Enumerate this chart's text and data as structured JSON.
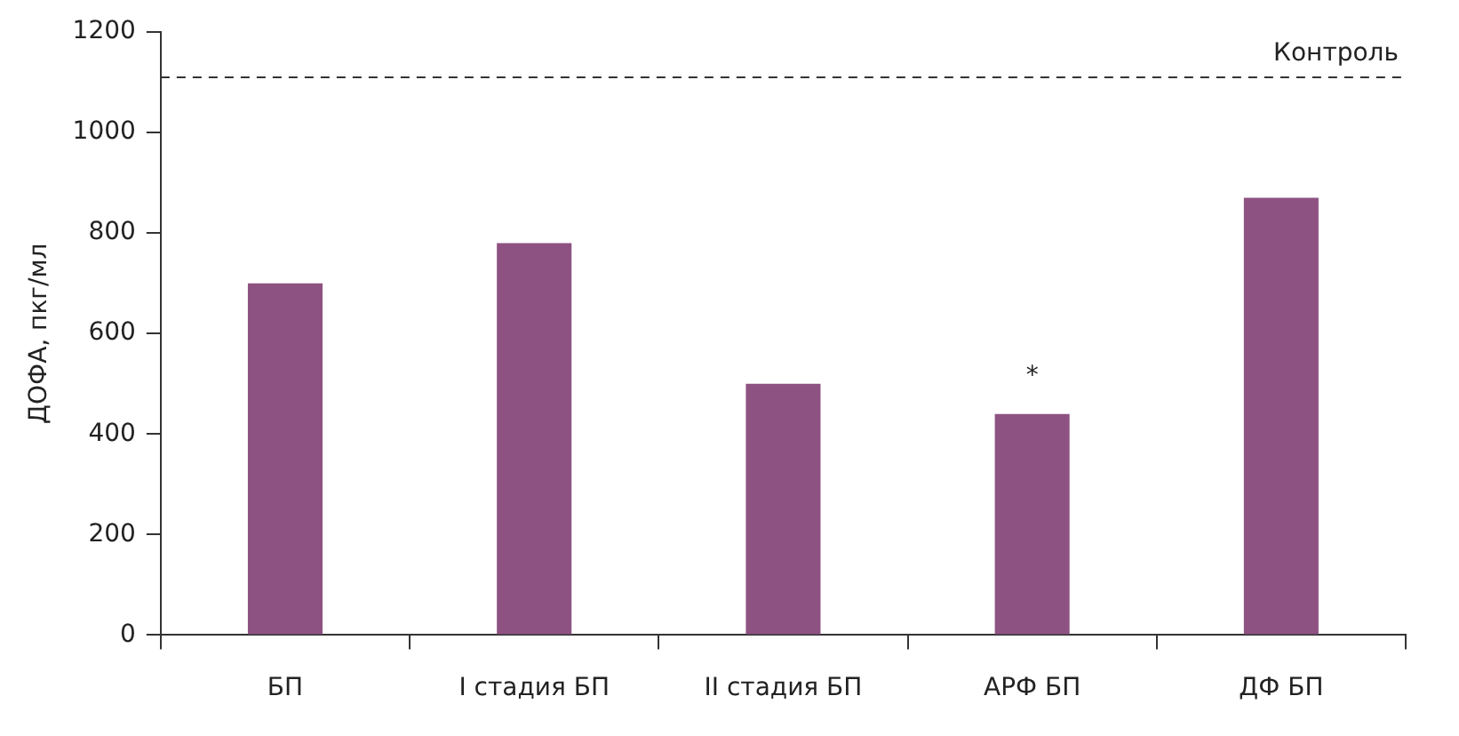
{
  "chart_data": {
    "type": "bar",
    "ylabel": "ДОФА, пкг/мл",
    "categories": [
      "БП",
      "I стадия БП",
      "II стадия БП",
      "АРФ БП",
      "ДФ БП"
    ],
    "values": [
      700,
      780,
      500,
      440,
      870
    ],
    "color": "#8e5282",
    "ylim": [
      0,
      1200
    ],
    "yticks": [
      0,
      200,
      400,
      600,
      800,
      1000,
      1200
    ],
    "grid": false,
    "legend": false,
    "ref_lines": [
      {
        "axis": "y",
        "value": 1110,
        "label": "Контроль",
        "color": "#333333",
        "line_style": "dashed"
      }
    ],
    "annotations": [
      {
        "text": "*",
        "x": "АРФ БП",
        "y": 440
      }
    ]
  }
}
